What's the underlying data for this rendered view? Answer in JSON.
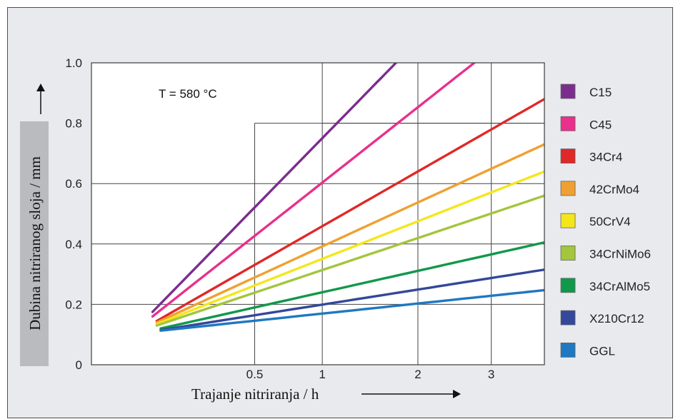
{
  "chart_data": {
    "type": "line",
    "title": "",
    "xlabel": "Trajanje nitriranja / h",
    "ylabel": "Dubina nitriranog sloja / mm",
    "annotation": "T = 580 °C",
    "x_scale": "sqrt",
    "xlim": [
      0,
      3.85
    ],
    "ylim": [
      0,
      1.0
    ],
    "x_ticks": [
      {
        "value": 0.5,
        "label": "0.5"
      },
      {
        "value": 1,
        "label": "1"
      },
      {
        "value": 2,
        "label": "2"
      },
      {
        "value": 3,
        "label": "3"
      }
    ],
    "y_ticks": [
      {
        "value": 0,
        "label": "0"
      },
      {
        "value": 0.2,
        "label": "0.2"
      },
      {
        "value": 0.4,
        "label": "0.4"
      },
      {
        "value": 0.6,
        "label": "0.6"
      },
      {
        "value": 0.8,
        "label": "0.8"
      },
      {
        "value": 1.0,
        "label": "1.0"
      }
    ],
    "grid": true,
    "legend_position": "right",
    "series": [
      {
        "name": "C15",
        "color": "#7b2d8e",
        "points": [
          [
            0.07,
            0.175
          ],
          [
            1.74,
            1.0
          ]
        ]
      },
      {
        "name": "C45",
        "color": "#e8308c",
        "points": [
          [
            0.07,
            0.16
          ],
          [
            2.75,
            1.0
          ]
        ]
      },
      {
        "name": "34Cr4",
        "color": "#e02828",
        "points": [
          [
            0.08,
            0.145
          ],
          [
            3.85,
            0.88
          ]
        ]
      },
      {
        "name": "42CrMo4",
        "color": "#f0a030",
        "points": [
          [
            0.08,
            0.14
          ],
          [
            3.85,
            0.73
          ]
        ]
      },
      {
        "name": "50CrV4",
        "color": "#f5e61c",
        "points": [
          [
            0.08,
            0.135
          ],
          [
            3.85,
            0.64
          ]
        ]
      },
      {
        "name": "34CrNiMo6",
        "color": "#a2c63c",
        "points": [
          [
            0.08,
            0.13
          ],
          [
            3.85,
            0.56
          ]
        ]
      },
      {
        "name": "34CrAlMo5",
        "color": "#11984a",
        "points": [
          [
            0.09,
            0.12
          ],
          [
            3.85,
            0.405
          ]
        ]
      },
      {
        "name": "X210Cr12",
        "color": "#33479b",
        "points": [
          [
            0.09,
            0.115
          ],
          [
            3.85,
            0.315
          ]
        ]
      },
      {
        "name": "GGL",
        "color": "#1f78c1",
        "points": [
          [
            0.09,
            0.113
          ],
          [
            3.85,
            0.247
          ]
        ]
      }
    ]
  }
}
